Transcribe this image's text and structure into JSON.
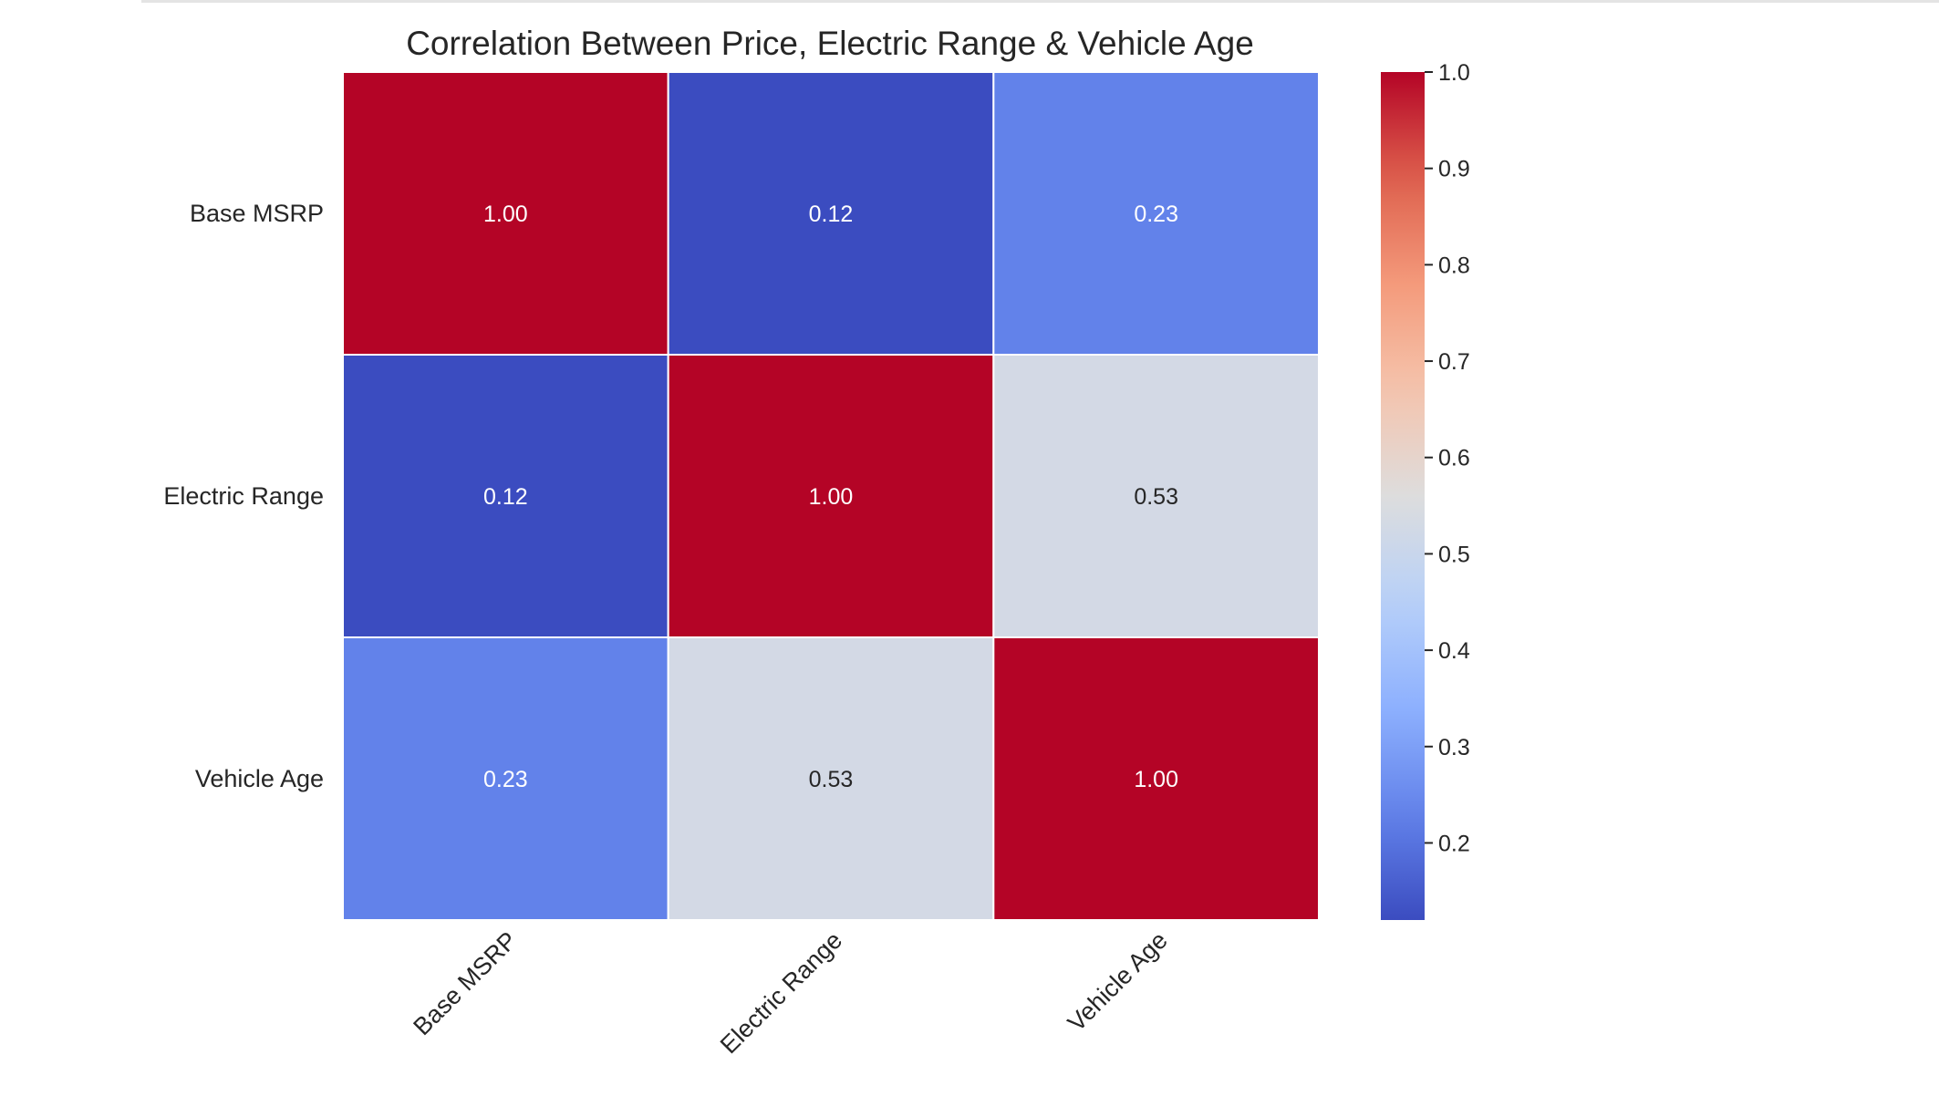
{
  "chart_data": {
    "type": "heatmap",
    "title": "Correlation Between Price, Electric Range & Vehicle Age",
    "xlabel": "",
    "ylabel": "",
    "x_categories": [
      "Base MSRP",
      "Electric Range",
      "Vehicle Age"
    ],
    "y_categories": [
      "Base MSRP",
      "Electric Range",
      "Vehicle Age"
    ],
    "values": [
      [
        1.0,
        0.12,
        0.23
      ],
      [
        0.12,
        1.0,
        0.53
      ],
      [
        0.23,
        0.53,
        1.0
      ]
    ],
    "annotations_format": "0.00",
    "colormap": "coolwarm",
    "cell_borders": true,
    "cell_border_color": "#ffffff",
    "text_color_dark_cells": "#ffffff",
    "text_color_light_cells": "#262626",
    "x_tick_rotation_deg": 45,
    "colorbar": {
      "position": "right",
      "range": [
        0.12,
        1.0
      ],
      "ticks": [
        "0.2",
        "0.3",
        "0.4",
        "0.5",
        "0.6",
        "0.7",
        "0.8",
        "0.9",
        "1.0"
      ]
    }
  }
}
